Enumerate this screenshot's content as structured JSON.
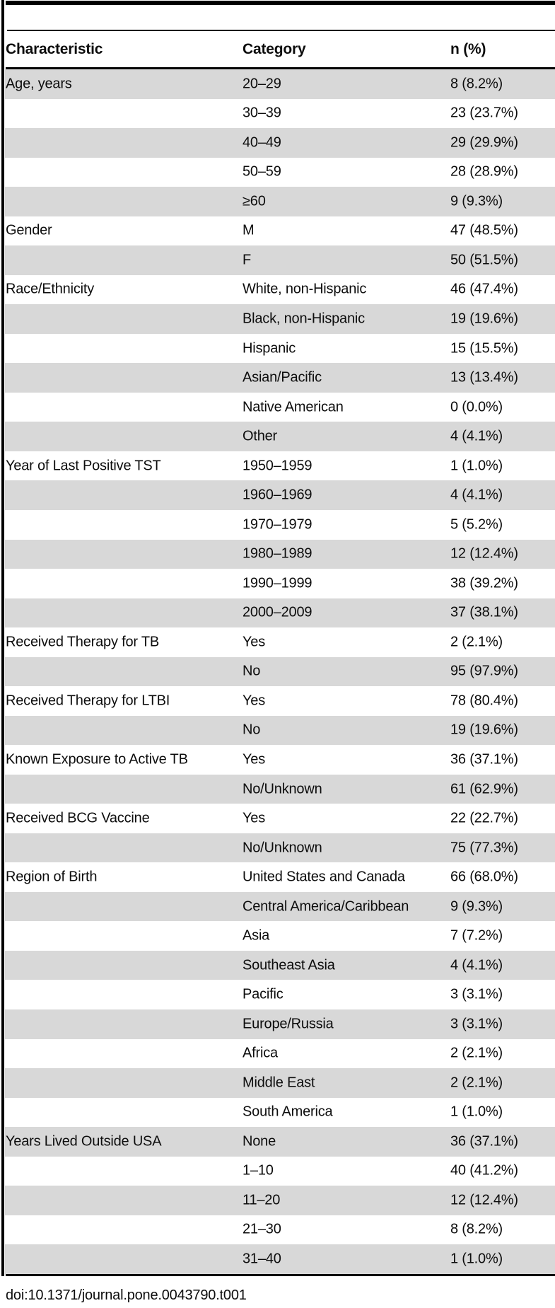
{
  "table": {
    "columns": [
      "Characteristic",
      "Category",
      "n (%)"
    ],
    "rows": [
      {
        "characteristic": "Age, years",
        "category": "20–29",
        "n": "8 (8.2%)"
      },
      {
        "characteristic": "",
        "category": "30–39",
        "n": "23 (23.7%)"
      },
      {
        "characteristic": "",
        "category": "40–49",
        "n": "29 (29.9%)"
      },
      {
        "characteristic": "",
        "category": "50–59",
        "n": "28 (28.9%)"
      },
      {
        "characteristic": "",
        "category": "≥60",
        "n": "9 (9.3%)"
      },
      {
        "characteristic": "Gender",
        "category": "M",
        "n": "47 (48.5%)"
      },
      {
        "characteristic": "",
        "category": "F",
        "n": "50 (51.5%)"
      },
      {
        "characteristic": "Race/Ethnicity",
        "category": "White, non-Hispanic",
        "n": "46 (47.4%)"
      },
      {
        "characteristic": "",
        "category": "Black, non-Hispanic",
        "n": "19 (19.6%)"
      },
      {
        "characteristic": "",
        "category": "Hispanic",
        "n": "15 (15.5%)"
      },
      {
        "characteristic": "",
        "category": "Asian/Pacific",
        "n": "13 (13.4%)"
      },
      {
        "characteristic": "",
        "category": "Native American",
        "n": "0 (0.0%)"
      },
      {
        "characteristic": "",
        "category": "Other",
        "n": "4 (4.1%)"
      },
      {
        "characteristic": "Year of Last Positive TST",
        "category": "1950–1959",
        "n": "1 (1.0%)"
      },
      {
        "characteristic": "",
        "category": "1960–1969",
        "n": "4 (4.1%)"
      },
      {
        "characteristic": "",
        "category": "1970–1979",
        "n": "5 (5.2%)"
      },
      {
        "characteristic": "",
        "category": "1980–1989",
        "n": "12 (12.4%)"
      },
      {
        "characteristic": "",
        "category": "1990–1999",
        "n": "38 (39.2%)"
      },
      {
        "characteristic": "",
        "category": "2000–2009",
        "n": "37 (38.1%)"
      },
      {
        "characteristic": "Received Therapy for TB",
        "category": "Yes",
        "n": "2 (2.1%)"
      },
      {
        "characteristic": "",
        "category": "No",
        "n": "95 (97.9%)"
      },
      {
        "characteristic": "Received Therapy for LTBI",
        "category": "Yes",
        "n": "78 (80.4%)"
      },
      {
        "characteristic": "",
        "category": "No",
        "n": "19 (19.6%)"
      },
      {
        "characteristic": "Known Exposure to Active TB",
        "category": "Yes",
        "n": "36 (37.1%)"
      },
      {
        "characteristic": "",
        "category": "No/Unknown",
        "n": "61 (62.9%)"
      },
      {
        "characteristic": "Received BCG Vaccine",
        "category": "Yes",
        "n": "22 (22.7%)"
      },
      {
        "characteristic": "",
        "category": "No/Unknown",
        "n": "75 (77.3%)"
      },
      {
        "characteristic": "Region of Birth",
        "category": "United States and Canada",
        "n": "66 (68.0%)"
      },
      {
        "characteristic": "",
        "category": "Central America/Caribbean",
        "n": "9 (9.3%)"
      },
      {
        "characteristic": "",
        "category": "Asia",
        "n": "7 (7.2%)"
      },
      {
        "characteristic": "",
        "category": "Southeast Asia",
        "n": "4 (4.1%)"
      },
      {
        "characteristic": "",
        "category": "Pacific",
        "n": "3 (3.1%)"
      },
      {
        "characteristic": "",
        "category": "Europe/Russia",
        "n": "3 (3.1%)"
      },
      {
        "characteristic": "",
        "category": "Africa",
        "n": "2 (2.1%)"
      },
      {
        "characteristic": "",
        "category": "Middle East",
        "n": "2 (2.1%)"
      },
      {
        "characteristic": "",
        "category": "South America",
        "n": "1 (1.0%)"
      },
      {
        "characteristic": "Years Lived Outside USA",
        "category": "None",
        "n": "36 (37.1%)"
      },
      {
        "characteristic": "",
        "category": "1–10",
        "n": "40 (41.2%)"
      },
      {
        "characteristic": "",
        "category": "11–20",
        "n": "12 (12.4%)"
      },
      {
        "characteristic": "",
        "category": "21–30",
        "n": "8 (8.2%)"
      },
      {
        "characteristic": "",
        "category": "31–40",
        "n": "1 (1.0%)"
      }
    ],
    "footer": "doi:10.1371/journal.pone.0043790.t001"
  },
  "colors": {
    "row_shade": "#d8d8d8",
    "row_plain": "#ffffff",
    "rule": "#000000",
    "text": "#0d0d0d"
  }
}
